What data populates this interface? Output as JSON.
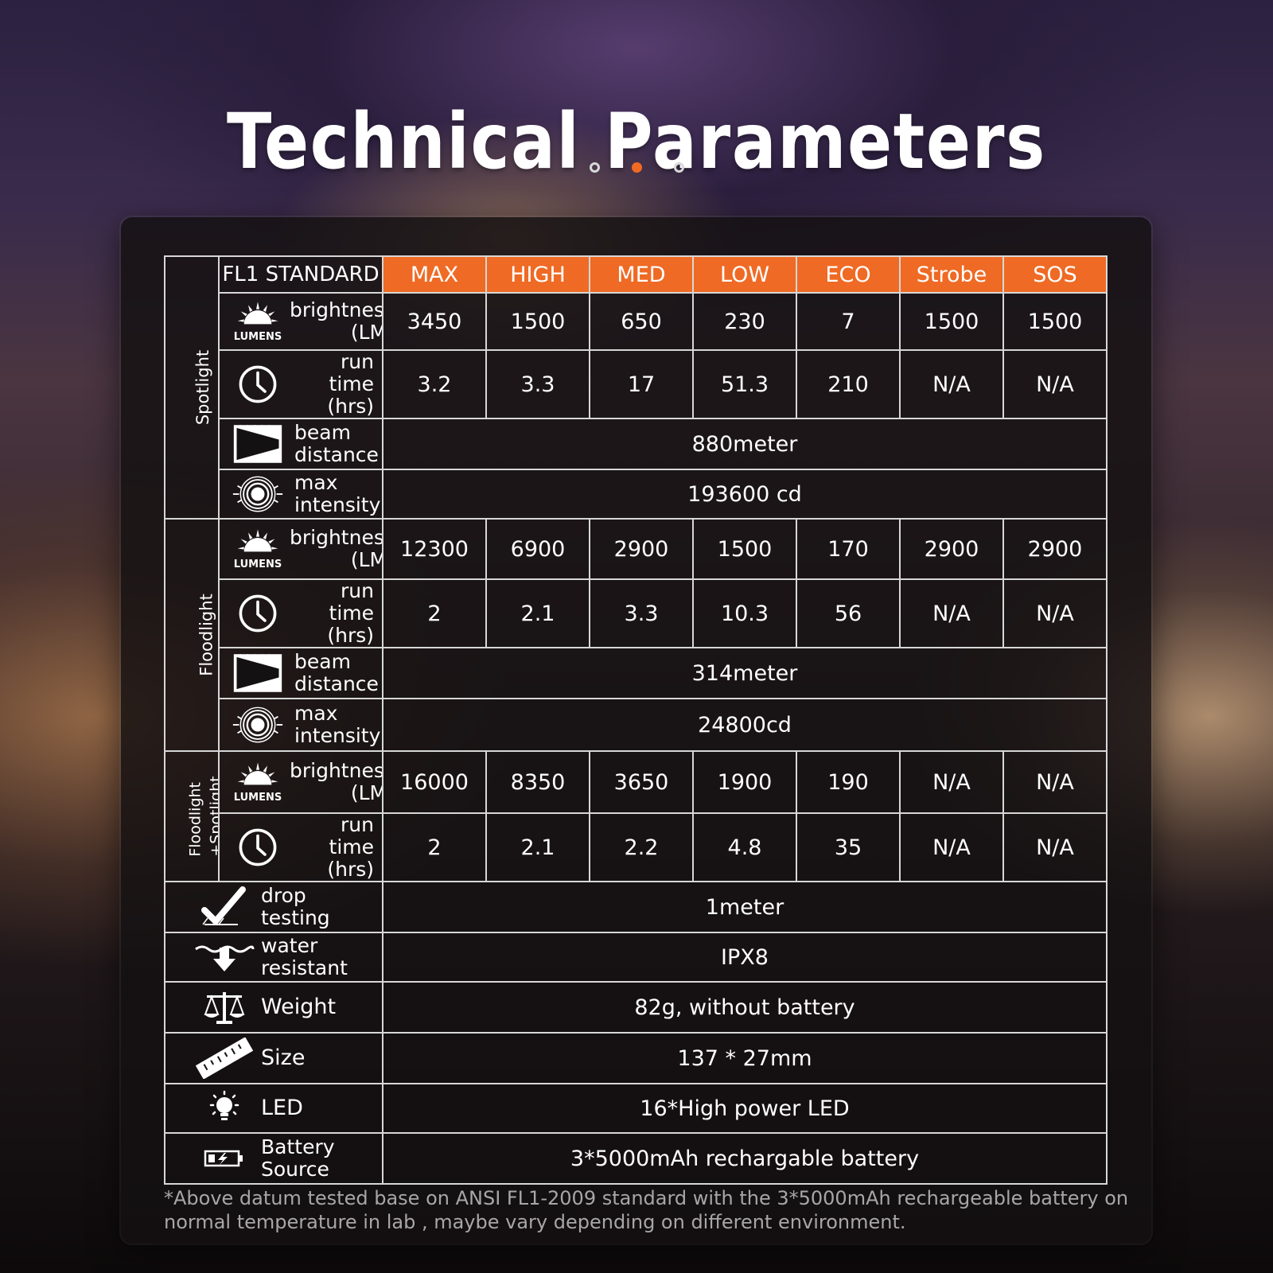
{
  "page": {
    "title": "Technical Parameters",
    "pager": {
      "total": 3,
      "active_index": 1
    },
    "accent_color": "#ef6a24"
  },
  "table": {
    "standard_label": "FL1 STANDARD",
    "modes": [
      "MAX",
      "HIGH",
      "MED",
      "LOW",
      "ECO",
      "Strobe",
      "SOS"
    ],
    "param_labels": {
      "brightness": [
        "brightness",
        "(LM)"
      ],
      "run_time": [
        "run time",
        "(hrs)"
      ],
      "beam_distance": [
        "beam",
        "distance"
      ],
      "max_intensity": [
        "max",
        "intensity"
      ],
      "lumens_caption": "LUMENS"
    },
    "groups": {
      "spotlight": {
        "label": "Spotlight",
        "brightness": [
          "3450",
          "1500",
          "650",
          "230",
          "7",
          "1500",
          "1500"
        ],
        "run_time": [
          "3.2",
          "3.3",
          "17",
          "51.3",
          "210",
          "N/A",
          "N/A"
        ],
        "beam_distance": "880meter",
        "max_intensity": "193600 cd"
      },
      "floodlight": {
        "label": "Floodlight",
        "brightness": [
          "12300",
          "6900",
          "2900",
          "1500",
          "170",
          "2900",
          "2900"
        ],
        "run_time": [
          "2",
          "2.1",
          "3.3",
          "10.3",
          "56",
          "N/A",
          "N/A"
        ],
        "beam_distance": "314meter",
        "max_intensity": "24800cd"
      },
      "combined": {
        "label_lines": [
          "Floodlight",
          "+Spotlight"
        ],
        "brightness": [
          "16000",
          "8350",
          "3650",
          "1900",
          "190",
          "N/A",
          "N/A"
        ],
        "run_time": [
          "2",
          "2.1",
          "2.2",
          "4.8",
          "35",
          "N/A",
          "N/A"
        ]
      }
    },
    "general": {
      "drop_testing": {
        "label": [
          "drop",
          "testing"
        ],
        "value": "1meter",
        "icon": "drop-test-check-icon"
      },
      "water_resistant": {
        "label": [
          "water",
          "resistant"
        ],
        "value": "IPX8",
        "icon": "water-drop-arrow-icon"
      },
      "weight": {
        "label": "Weight",
        "value": "82g, without battery",
        "icon": "scale-icon"
      },
      "size": {
        "label": "Size",
        "value": "137 * 27mm",
        "icon": "ruler-icon"
      },
      "led": {
        "label": "LED",
        "value": "16*High power LED",
        "icon": "light-bulb-icon"
      },
      "battery": {
        "label": [
          "Battery",
          "Source"
        ],
        "value": "3*5000mAh rechargable battery",
        "icon": "battery-charging-icon"
      }
    }
  },
  "footnote": "*Above datum tested base on ANSI FL1-2009 standard with the 3*5000mAh rechargeable battery on normal temperature in lab , maybe vary depending on different environment."
}
